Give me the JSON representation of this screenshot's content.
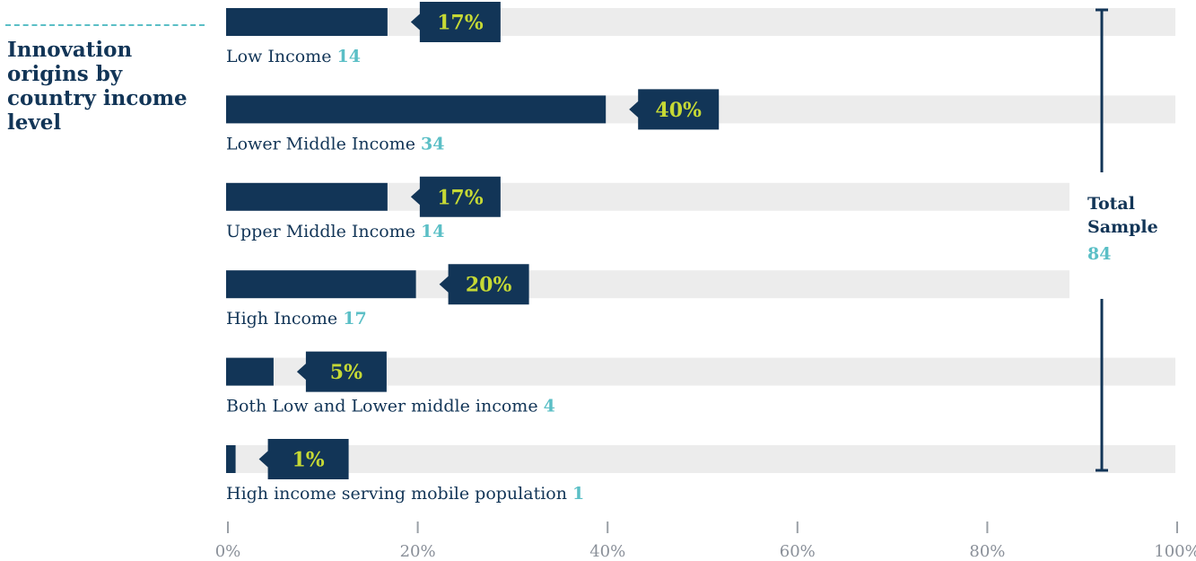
{
  "chart_data": {
    "type": "bar",
    "title": "Innovation origins by country income level",
    "categories": [
      "Low Income",
      "Lower Middle Income",
      "Upper Middle Income",
      "High Income",
      "Both Low and Lower middle income",
      "High income serving mobile population"
    ],
    "counts": [
      14,
      34,
      14,
      17,
      4,
      1
    ],
    "values": [
      17,
      40,
      17,
      20,
      5,
      1
    ],
    "value_labels": [
      "17%",
      "40%",
      "17%",
      "20%",
      "5%",
      "1%"
    ],
    "x_ticks": [
      "0%",
      "20%",
      "40%",
      "60%",
      "80%",
      "100%"
    ],
    "xlim": [
      0,
      100
    ],
    "total_label": "Total Sample",
    "total_value": "84",
    "colors": {
      "bar": "#123557",
      "track": "#ececec",
      "percent_text": "#c6d935",
      "count_text": "#5bbfc6"
    }
  }
}
